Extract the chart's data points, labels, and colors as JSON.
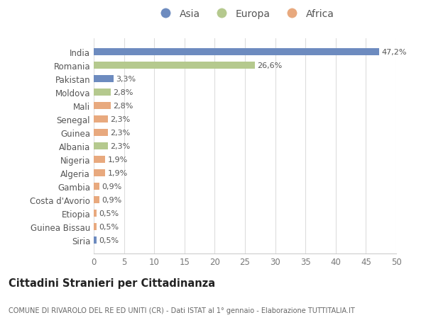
{
  "countries": [
    "India",
    "Romania",
    "Pakistan",
    "Moldova",
    "Mali",
    "Senegal",
    "Guinea",
    "Albania",
    "Nigeria",
    "Algeria",
    "Gambia",
    "Costa d'Avorio",
    "Etiopia",
    "Guinea Bissau",
    "Siria"
  ],
  "values": [
    47.2,
    26.6,
    3.3,
    2.8,
    2.8,
    2.3,
    2.3,
    2.3,
    1.9,
    1.9,
    0.9,
    0.9,
    0.5,
    0.5,
    0.5
  ],
  "labels": [
    "47,2%",
    "26,6%",
    "3,3%",
    "2,8%",
    "2,8%",
    "2,3%",
    "2,3%",
    "2,3%",
    "1,9%",
    "1,9%",
    "0,9%",
    "0,9%",
    "0,5%",
    "0,5%",
    "0,5%"
  ],
  "colors": [
    "#6d8bbf",
    "#b5c98e",
    "#6d8bbf",
    "#b5c98e",
    "#e8a97e",
    "#e8a97e",
    "#e8a97e",
    "#b5c98e",
    "#e8a97e",
    "#e8a97e",
    "#e8a97e",
    "#e8a97e",
    "#e8a97e",
    "#e8a97e",
    "#6d8bbf"
  ],
  "legend_labels": [
    "Asia",
    "Europa",
    "Africa"
  ],
  "legend_colors": [
    "#6d8bbf",
    "#b5c98e",
    "#e8a97e"
  ],
  "title": "Cittadini Stranieri per Cittadinanza",
  "subtitle": "COMUNE DI RIVAROLO DEL RE ED UNITI (CR) - Dati ISTAT al 1° gennaio - Elaborazione TUTTITALIA.IT",
  "xlim": [
    0,
    50
  ],
  "xticks": [
    0,
    5,
    10,
    15,
    20,
    25,
    30,
    35,
    40,
    45,
    50
  ],
  "background_color": "#ffffff",
  "grid_color": "#dddddd",
  "bar_height": 0.55
}
